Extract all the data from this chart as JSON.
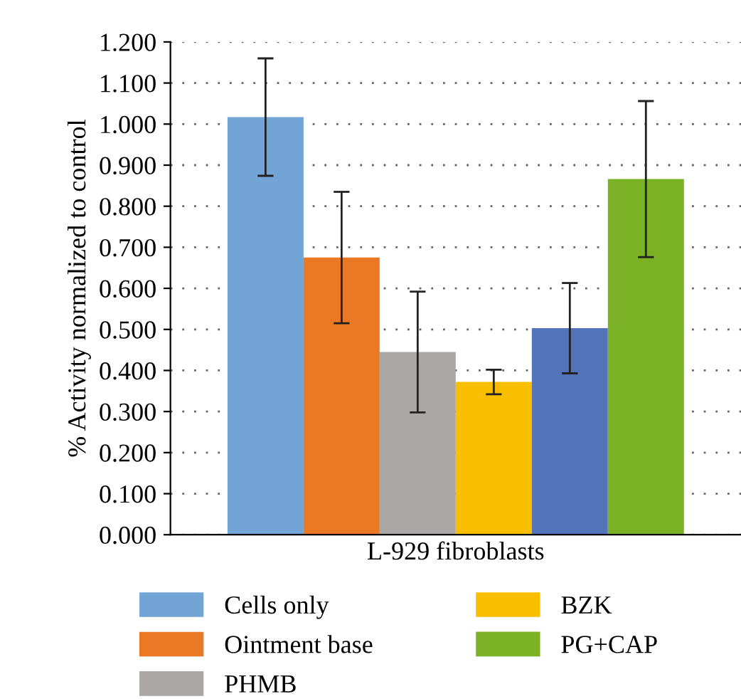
{
  "chart_data": {
    "type": "bar",
    "ylabel": "% Activity normalized to control",
    "categories": [
      "L-929 fibroblasts"
    ],
    "series": [
      {
        "name": "Cells only",
        "color": "#72a5d6",
        "values": [
          1.017
        ],
        "errors": [
          0.143
        ]
      },
      {
        "name": "Ointment base",
        "color": "#eb7824",
        "values": [
          0.675
        ],
        "errors": [
          0.16
        ]
      },
      {
        "name": "PHMB",
        "color": "#aba7a6",
        "values": [
          0.445
        ],
        "errors": [
          0.147
        ]
      },
      {
        "name": "BZK",
        "color": "#fabe00",
        "values": [
          0.372
        ],
        "errors": [
          0.03
        ]
      },
      {
        "color": "#5373ba",
        "values": [
          0.503
        ],
        "errors": [
          0.11
        ]
      },
      {
        "name": "PG+CAP",
        "color": "#7bb124",
        "values": [
          0.866
        ],
        "errors": [
          0.19
        ]
      }
    ],
    "ylim": [
      0,
      1.2
    ],
    "yticks": [
      {
        "value": 0,
        "label": "0.000"
      },
      {
        "value": 0.1,
        "label": "0.100"
      },
      {
        "value": 0.2,
        "label": "0.200"
      },
      {
        "value": 0.3,
        "label": "0.300"
      },
      {
        "value": 0.4,
        "label": "0.400"
      },
      {
        "value": 0.5,
        "label": "0.500"
      },
      {
        "value": 0.6,
        "label": "0.600"
      },
      {
        "value": 0.7,
        "label": "0.700"
      },
      {
        "value": 0.8,
        "label": "0.800"
      },
      {
        "value": 0.9,
        "label": "0.900"
      },
      {
        "value": 1.0,
        "label": "1.000"
      },
      {
        "value": 1.1,
        "label": "1.100"
      },
      {
        "value": 1.2,
        "label": "1.200"
      }
    ],
    "grid": "y",
    "legend": "bottom"
  }
}
